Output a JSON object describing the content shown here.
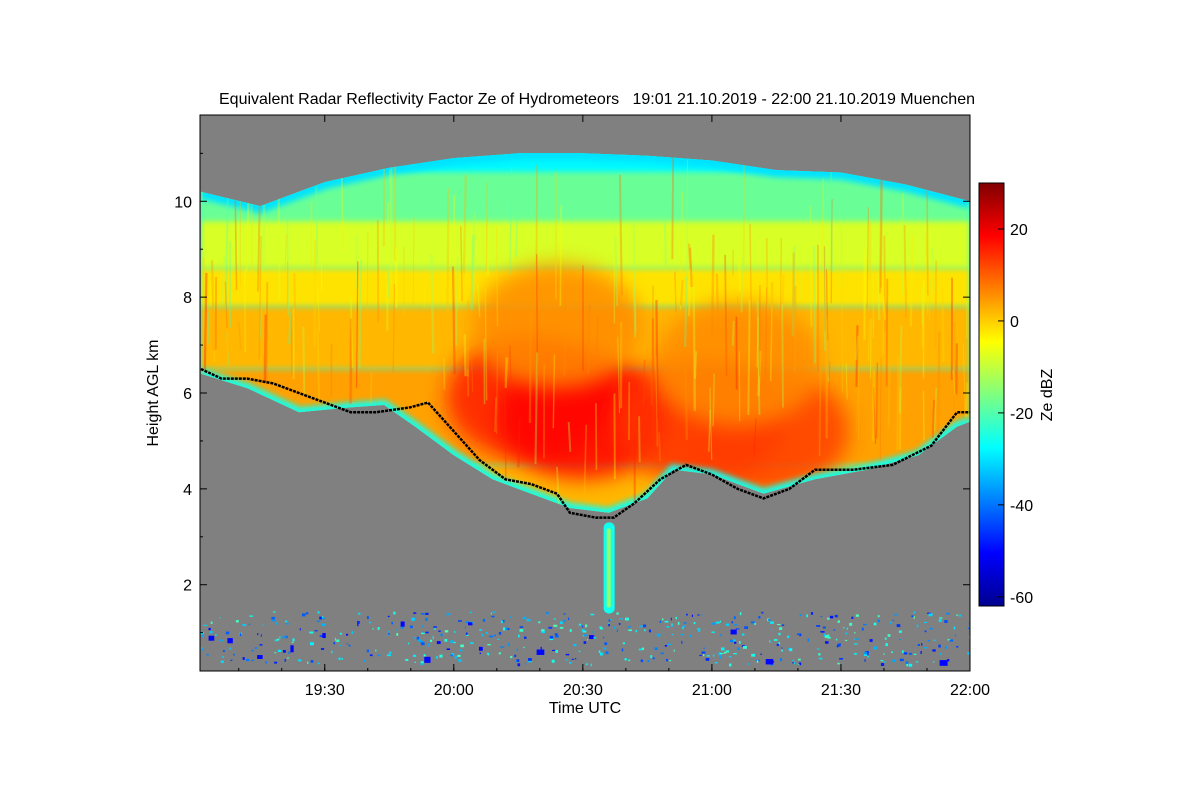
{
  "chart_data": {
    "type": "heatmap",
    "title": "Equivalent Radar Reflectivity Factor Ze of Hydrometeors   19:01 21.10.2019 - 22:00 21.10.2019 Muenchen",
    "xlabel": "Time UTC",
    "ylabel": "Height AGL km",
    "colorbar_label": "Ze dBZ",
    "xlim": [
      "19:01",
      "22:00"
    ],
    "ylim": [
      0.2,
      11.8
    ],
    "x_ticks": [
      "19:30",
      "20:00",
      "20:30",
      "21:00",
      "21:30",
      "22:00"
    ],
    "y_ticks": [
      2,
      4,
      6,
      8,
      10
    ],
    "colorbar_range": [
      -62,
      30
    ],
    "colorbar_ticks": [
      20,
      0,
      -20,
      -40,
      -60
    ],
    "colormap": "jet",
    "no_data_color": "#808080",
    "cloud_top_km": [
      [
        19.02,
        10.2
      ],
      [
        19.25,
        9.9
      ],
      [
        19.5,
        10.4
      ],
      [
        19.75,
        10.7
      ],
      [
        20.0,
        10.9
      ],
      [
        20.25,
        11.0
      ],
      [
        20.5,
        11.0
      ],
      [
        20.75,
        10.95
      ],
      [
        21.0,
        10.85
      ],
      [
        21.25,
        10.65
      ],
      [
        21.5,
        10.6
      ],
      [
        21.75,
        10.35
      ],
      [
        22.0,
        10.0
      ]
    ],
    "cloud_base_km": [
      [
        19.02,
        6.4
      ],
      [
        19.2,
        6.1
      ],
      [
        19.4,
        5.6
      ],
      [
        19.6,
        5.7
      ],
      [
        19.73,
        5.75
      ],
      [
        19.85,
        5.3
      ],
      [
        20.0,
        4.7
      ],
      [
        20.15,
        4.2
      ],
      [
        20.3,
        3.9
      ],
      [
        20.45,
        3.6
      ],
      [
        20.6,
        3.5
      ],
      [
        20.75,
        3.8
      ],
      [
        20.85,
        4.4
      ],
      [
        21.0,
        4.3
      ],
      [
        21.2,
        3.9
      ],
      [
        21.4,
        4.2
      ],
      [
        21.6,
        4.4
      ],
      [
        21.8,
        4.7
      ],
      [
        21.95,
        5.3
      ],
      [
        22.0,
        5.4
      ]
    ],
    "black_line_km": [
      [
        19.02,
        6.5
      ],
      [
        19.1,
        6.3
      ],
      [
        19.2,
        6.3
      ],
      [
        19.3,
        6.2
      ],
      [
        19.4,
        6.0
      ],
      [
        19.5,
        5.8
      ],
      [
        19.6,
        5.6
      ],
      [
        19.7,
        5.6
      ],
      [
        19.83,
        5.7
      ],
      [
        19.9,
        5.8
      ],
      [
        20.0,
        5.2
      ],
      [
        20.1,
        4.6
      ],
      [
        20.2,
        4.2
      ],
      [
        20.3,
        4.1
      ],
      [
        20.4,
        3.9
      ],
      [
        20.45,
        3.5
      ],
      [
        20.55,
        3.4
      ],
      [
        20.62,
        3.4
      ],
      [
        20.7,
        3.7
      ],
      [
        20.8,
        4.2
      ],
      [
        20.9,
        4.5
      ],
      [
        21.0,
        4.3
      ],
      [
        21.1,
        4.0
      ],
      [
        21.2,
        3.8
      ],
      [
        21.3,
        4.0
      ],
      [
        21.4,
        4.4
      ],
      [
        21.55,
        4.4
      ],
      [
        21.7,
        4.5
      ],
      [
        21.85,
        4.9
      ],
      [
        21.95,
        5.6
      ],
      [
        22.0,
        5.6
      ]
    ],
    "cores_dbz": [
      {
        "x": 20.3,
        "y": 5.9,
        "v": 16
      },
      {
        "x": 20.5,
        "y": 5.5,
        "v": 18
      },
      {
        "x": 20.95,
        "y": 5.4,
        "v": 14
      },
      {
        "x": 21.2,
        "y": 5.2,
        "v": 13
      },
      {
        "x": 20.4,
        "y": 7.4,
        "v": 6
      },
      {
        "x": 21.1,
        "y": 6.6,
        "v": 6
      }
    ],
    "precip_streak": {
      "x": 20.6,
      "top_km": 3.3,
      "bottom_km": 1.4
    }
  }
}
